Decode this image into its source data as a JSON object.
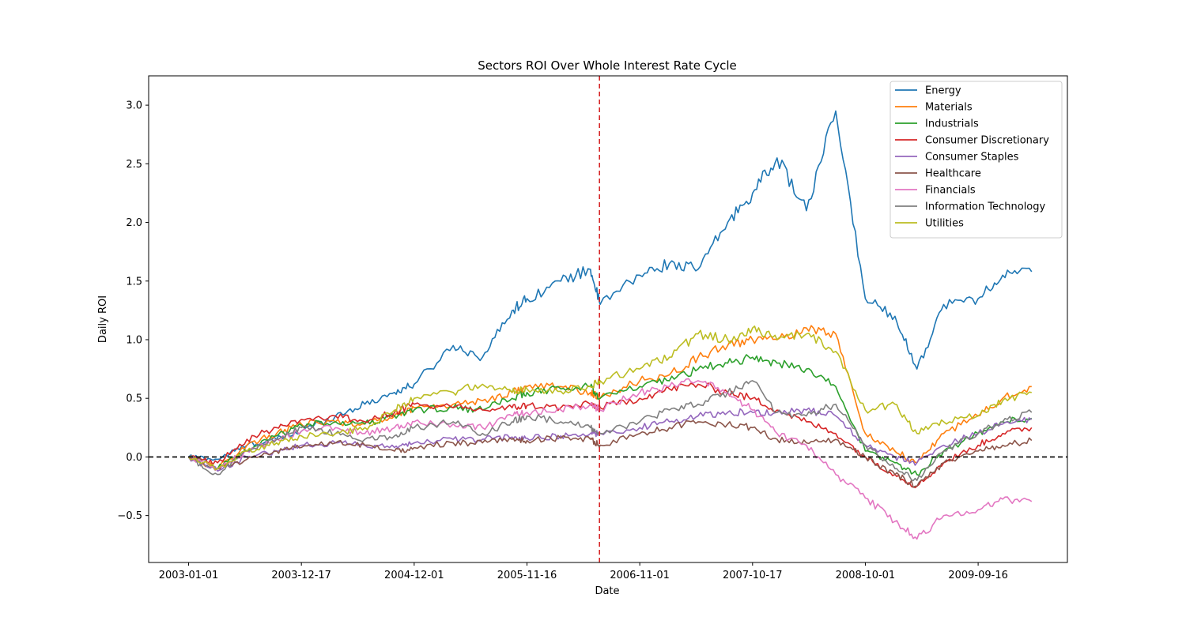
{
  "chart_data": {
    "type": "line",
    "title": "Sectors ROI Over Whole Interest Rate Cycle",
    "xlabel": "Date",
    "ylabel": "Daily ROI",
    "x_tick_labels": [
      "2003-01-01",
      "2003-12-17",
      "2004-12-01",
      "2005-11-16",
      "2006-11-01",
      "2007-10-17",
      "2008-10-01",
      "2009-09-16"
    ],
    "y_tick_labels": [
      "−0.5",
      "0.0",
      "0.5",
      "1.0",
      "1.5",
      "2.0",
      "2.5",
      "3.0"
    ],
    "y_ticks": [
      -0.5,
      0.0,
      0.5,
      1.0,
      1.5,
      2.0,
      2.5,
      3.0
    ],
    "xlim": [
      "2002-08-30",
      "2010-06-20"
    ],
    "ylim": [
      -0.9,
      3.25
    ],
    "grid": false,
    "legend_position": "top-right",
    "reference_lines": [
      {
        "orientation": "horizontal",
        "y": 0.0,
        "color": "#000000",
        "style": "dashed"
      },
      {
        "orientation": "vertical",
        "x": "2006-06-29",
        "color": "#d62728",
        "style": "dashed"
      }
    ],
    "x": [
      "2003-01-01",
      "2003-04-01",
      "2003-07-01",
      "2003-10-01",
      "2003-12-17",
      "2004-04-01",
      "2004-07-01",
      "2004-10-01",
      "2004-12-01",
      "2005-04-01",
      "2005-07-01",
      "2005-10-01",
      "2005-11-16",
      "2006-03-01",
      "2006-06-01",
      "2006-07-01",
      "2006-11-01",
      "2007-02-01",
      "2007-05-01",
      "2007-08-01",
      "2007-10-17",
      "2008-01-01",
      "2008-04-01",
      "2008-07-01",
      "2008-10-01",
      "2009-01-01",
      "2009-03-10",
      "2009-06-01",
      "2009-09-16",
      "2009-12-01",
      "2010-03-01"
    ],
    "series": [
      {
        "name": "Energy",
        "color": "#1f77b4",
        "values": [
          0.0,
          -0.02,
          0.1,
          0.15,
          0.22,
          0.35,
          0.45,
          0.55,
          0.62,
          0.95,
          0.85,
          1.25,
          1.35,
          1.5,
          1.6,
          1.3,
          1.55,
          1.65,
          1.6,
          2.0,
          2.25,
          2.55,
          2.1,
          2.95,
          1.35,
          1.2,
          0.75,
          1.3,
          1.35,
          1.55,
          1.58
        ]
      },
      {
        "name": "Materials",
        "color": "#ff7f0e",
        "values": [
          0.0,
          -0.1,
          0.1,
          0.2,
          0.28,
          0.3,
          0.28,
          0.35,
          0.42,
          0.45,
          0.48,
          0.55,
          0.6,
          0.6,
          0.55,
          0.5,
          0.65,
          0.7,
          0.85,
          0.95,
          1.0,
          1.0,
          1.1,
          1.05,
          0.2,
          0.05,
          -0.05,
          0.2,
          0.35,
          0.5,
          0.6
        ]
      },
      {
        "name": "Industrials",
        "color": "#2ca02c",
        "values": [
          0.0,
          -0.1,
          0.05,
          0.18,
          0.27,
          0.3,
          0.28,
          0.35,
          0.4,
          0.42,
          0.4,
          0.5,
          0.55,
          0.58,
          0.6,
          0.5,
          0.6,
          0.65,
          0.75,
          0.8,
          0.85,
          0.8,
          0.75,
          0.6,
          0.05,
          -0.05,
          -0.15,
          0.05,
          0.2,
          0.3,
          0.33
        ]
      },
      {
        "name": "Consumer Discretionary",
        "color": "#d62728",
        "values": [
          0.0,
          -0.05,
          0.15,
          0.25,
          0.32,
          0.35,
          0.3,
          0.38,
          0.45,
          0.42,
          0.4,
          0.42,
          0.44,
          0.42,
          0.45,
          0.42,
          0.5,
          0.58,
          0.62,
          0.55,
          0.5,
          0.4,
          0.3,
          0.2,
          0.0,
          -0.15,
          -0.25,
          -0.05,
          0.1,
          0.2,
          0.25
        ]
      },
      {
        "name": "Consumer Staples",
        "color": "#9467bd",
        "values": [
          0.0,
          -0.12,
          0.0,
          0.05,
          0.1,
          0.12,
          0.1,
          0.08,
          0.12,
          0.15,
          0.15,
          0.17,
          0.16,
          0.18,
          0.2,
          0.2,
          0.25,
          0.3,
          0.35,
          0.38,
          0.38,
          0.38,
          0.4,
          0.35,
          0.1,
          0.0,
          -0.05,
          0.1,
          0.2,
          0.28,
          0.32
        ]
      },
      {
        "name": "Healthcare",
        "color": "#8c564b",
        "values": [
          0.0,
          -0.1,
          -0.02,
          0.05,
          0.08,
          0.12,
          0.1,
          0.05,
          0.08,
          0.12,
          0.12,
          0.15,
          0.14,
          0.16,
          0.15,
          0.1,
          0.2,
          0.25,
          0.3,
          0.28,
          0.25,
          0.15,
          0.12,
          0.15,
          0.0,
          -0.15,
          -0.25,
          -0.05,
          0.05,
          0.1,
          0.14
        ]
      },
      {
        "name": "Financials",
        "color": "#e377c2",
        "values": [
          0.0,
          -0.1,
          0.05,
          0.15,
          0.22,
          0.25,
          0.2,
          0.25,
          0.3,
          0.28,
          0.25,
          0.35,
          0.38,
          0.4,
          0.45,
          0.4,
          0.55,
          0.6,
          0.65,
          0.55,
          0.4,
          0.2,
          0.1,
          -0.15,
          -0.35,
          -0.55,
          -0.7,
          -0.5,
          -0.45,
          -0.36,
          -0.38
        ]
      },
      {
        "name": "Information Technology",
        "color": "#7f7f7f",
        "values": [
          0.0,
          -0.15,
          0.05,
          0.15,
          0.25,
          0.2,
          0.15,
          0.18,
          0.25,
          0.3,
          0.2,
          0.3,
          0.35,
          0.3,
          0.25,
          0.2,
          0.3,
          0.4,
          0.45,
          0.55,
          0.65,
          0.38,
          0.35,
          0.45,
          0.1,
          -0.1,
          -0.2,
          0.05,
          0.2,
          0.3,
          0.38
        ]
      },
      {
        "name": "Utilities",
        "color": "#bcbd22",
        "values": [
          0.0,
          -0.1,
          0.05,
          0.12,
          0.18,
          0.2,
          0.25,
          0.4,
          0.5,
          0.55,
          0.62,
          0.55,
          0.58,
          0.56,
          0.6,
          0.65,
          0.75,
          0.85,
          1.05,
          1.0,
          1.1,
          1.0,
          1.05,
          0.9,
          0.4,
          0.45,
          0.2,
          0.3,
          0.35,
          0.48,
          0.55
        ]
      }
    ]
  }
}
